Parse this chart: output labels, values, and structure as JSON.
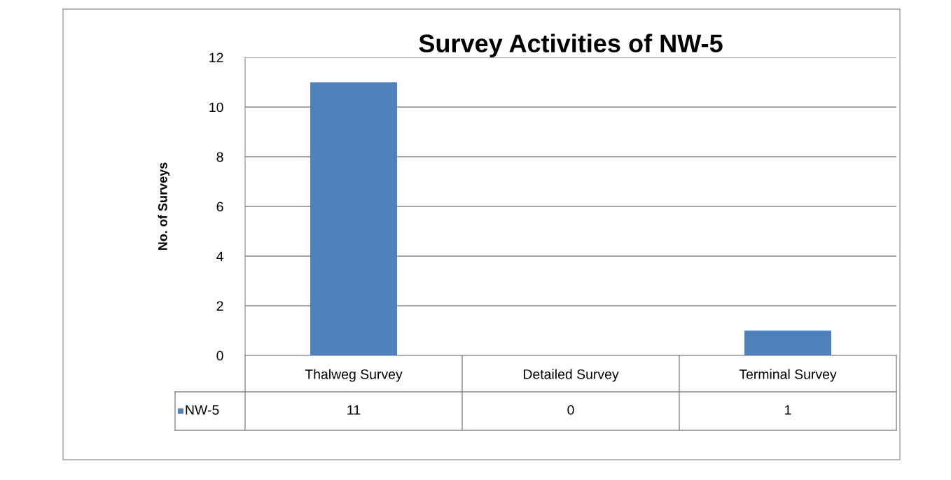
{
  "chart_data": {
    "type": "bar",
    "title": "Survey Activities of NW-5",
    "ylabel": "No. of Surveys",
    "categories": [
      "Thalweg Survey",
      "Detailed Survey",
      "Terminal Survey"
    ],
    "series": [
      {
        "name": "NW-5",
        "color": "#4f81bd",
        "values": [
          11,
          0,
          1
        ]
      }
    ],
    "ylim": [
      0,
      12
    ],
    "yticks": [
      0,
      2,
      4,
      6,
      8,
      10,
      12
    ],
    "grid": "y",
    "legend": "bottom",
    "data_labels": true
  }
}
